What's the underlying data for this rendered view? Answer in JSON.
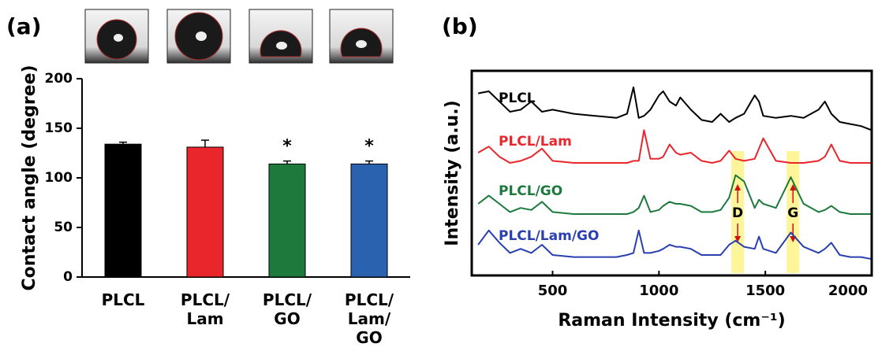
{
  "chart_data": [
    {
      "type": "bar",
      "panel_label": "(a)",
      "ylabel": "Contact angle (degree)",
      "categories": [
        "PLCL",
        "PLCL/\nLam",
        "PLCL/\nGO",
        "PLCL/\nLam/\nGO"
      ],
      "values": [
        134,
        131,
        114,
        114
      ],
      "errors": [
        2,
        7,
        3,
        3
      ],
      "significance": [
        null,
        null,
        "*",
        "*"
      ],
      "colors": [
        "#000000",
        "#e8262b",
        "#1d7a3c",
        "#2a62b0"
      ],
      "ylim": [
        0,
        200
      ],
      "yticks": [
        0,
        50,
        100,
        150,
        200
      ]
    },
    {
      "type": "line",
      "panel_label": "(b)",
      "xlabel": "Raman Intensity (cm⁻¹)",
      "ylabel": "Intensity (a.u.)",
      "xlim": [
        120,
        2000
      ],
      "xticks": [
        500,
        1000,
        1500,
        2000
      ],
      "ylim": [
        0,
        100
      ],
      "x": [
        150,
        200,
        250,
        300,
        350,
        400,
        450,
        500,
        600,
        700,
        800,
        850,
        880,
        905,
        930,
        960,
        1000,
        1020,
        1050,
        1080,
        1100,
        1150,
        1200,
        1250,
        1290,
        1330,
        1360,
        1400,
        1450,
        1470,
        1490,
        1550,
        1620,
        1680,
        1750,
        1780,
        1810,
        1850,
        1900,
        1950,
        2000
      ],
      "series": [
        {
          "name": "PLCL",
          "color": "#000000",
          "values": [
            89,
            90,
            85,
            80,
            81,
            85,
            80,
            81,
            79,
            78,
            77,
            79,
            92,
            77,
            78,
            81,
            88,
            90,
            85,
            83,
            87,
            81,
            76,
            75,
            79,
            75,
            77,
            79,
            88,
            85,
            78,
            77,
            78,
            77,
            81,
            85,
            79,
            75,
            74,
            73,
            71
          ]
        },
        {
          "name": "PLCL/Lam",
          "color": "#e8262b",
          "values": [
            60,
            63,
            58,
            55,
            56,
            58,
            62,
            56,
            55,
            55,
            55,
            55,
            56,
            56,
            71,
            57,
            57,
            58,
            64,
            60,
            59,
            60,
            56,
            55,
            56,
            61,
            57,
            56,
            57,
            62,
            67,
            56,
            55,
            55,
            56,
            58,
            64,
            56,
            55,
            55,
            55
          ]
        },
        {
          "name": "PLCL/GO",
          "color": "#1d7a3c",
          "values": [
            35,
            39,
            35,
            31,
            33,
            32,
            36,
            31,
            30,
            30,
            30,
            30,
            31,
            33,
            39,
            31,
            32,
            34,
            36,
            35,
            35,
            34,
            31,
            31,
            32,
            38,
            49,
            46,
            33,
            37,
            35,
            33,
            48,
            35,
            31,
            32,
            34,
            31,
            30,
            30,
            30
          ]
        },
        {
          "name": "PLCL/Lam/GO",
          "color": "#2a3fb0",
          "values": [
            15,
            22,
            16,
            11,
            13,
            11,
            15,
            10,
            9,
            9,
            9,
            10,
            11,
            22,
            11,
            11,
            12,
            13,
            15,
            14,
            14,
            13,
            10,
            10,
            10,
            15,
            17,
            14,
            13,
            19,
            13,
            11,
            21,
            14,
            11,
            13,
            16,
            10,
            9,
            9,
            8
          ]
        }
      ],
      "highlights": [
        {
          "label": "D",
          "range": [
            1340,
            1400
          ]
        },
        {
          "label": "G",
          "range": [
            1600,
            1660
          ]
        }
      ]
    }
  ]
}
